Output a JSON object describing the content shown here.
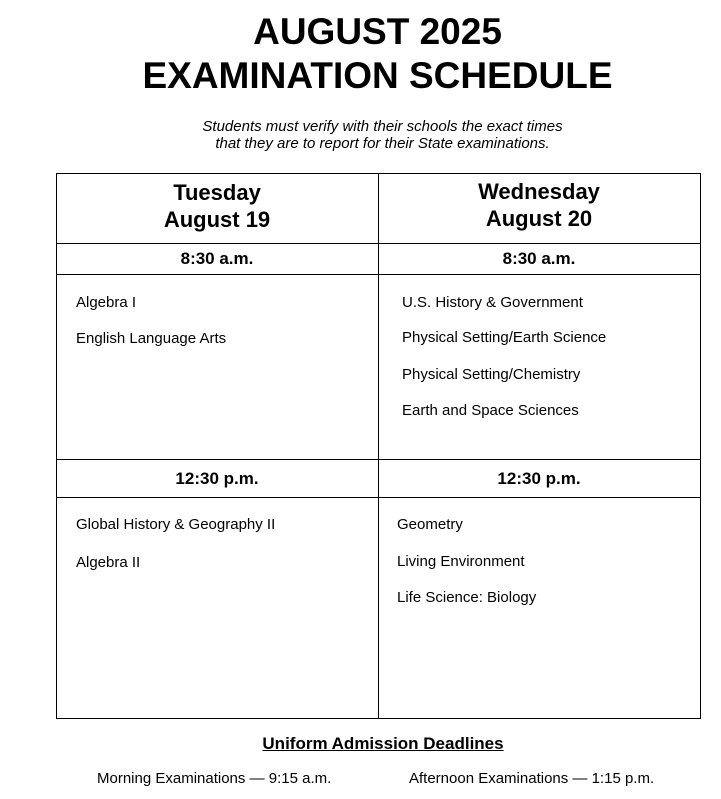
{
  "title": {
    "line1": "AUGUST 2025",
    "line2": "EXAMINATION SCHEDULE"
  },
  "subtitle": {
    "line1": "Students must verify with their schools the exact times",
    "line2": "that they are to report for their State examinations."
  },
  "days": [
    {
      "weekday": "Tuesday",
      "date": "August 19",
      "morning": {
        "time": "8:30 a.m.",
        "exams": [
          "Algebra I",
          "English Language Arts"
        ]
      },
      "afternoon": {
        "time": "12:30 p.m.",
        "exams": [
          "Global History & Geography II",
          "Algebra II"
        ]
      }
    },
    {
      "weekday": "Wednesday",
      "date": "August 20",
      "morning": {
        "time": "8:30 a.m.",
        "exams": [
          "U.S. History & Government",
          "Physical Setting/Earth Science",
          "Physical Setting/Chemistry",
          "Earth and Space Sciences"
        ]
      },
      "afternoon": {
        "time": "12:30 p.m.",
        "exams": [
          "Geometry",
          "Living Environment",
          "Life Science: Biology"
        ]
      }
    }
  ],
  "deadlines": {
    "heading": "Uniform Admission Deadlines",
    "morning": "Morning Examinations — 9:15 a.m.",
    "afternoon": "Afternoon Examinations — 1:15 p.m."
  }
}
